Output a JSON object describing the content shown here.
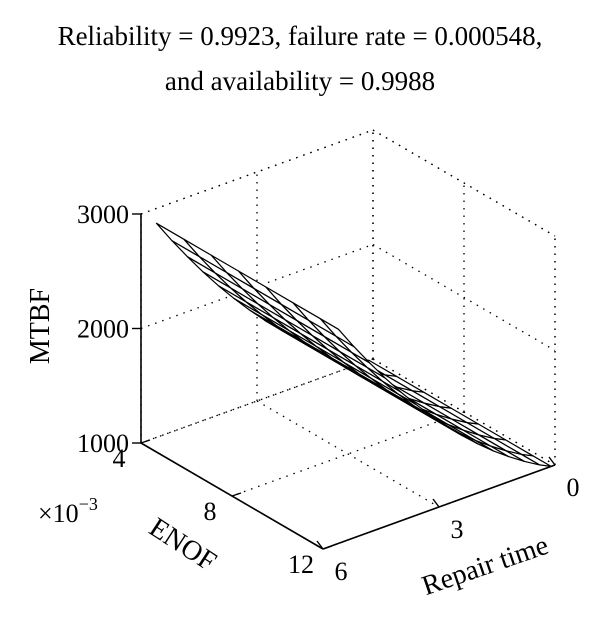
{
  "title_lines": [
    "Reliability = 0.9923, failure rate = 0.000548,",
    "and availability = 0.9988"
  ],
  "chart_data": {
    "type": "surface",
    "title": "Reliability = 0.9923, failure rate = 0.000548, and availability = 0.9988",
    "xlabel": "Repair time",
    "ylabel": "ENOF",
    "zlabel": "MTBF",
    "x_ticks": [
      0,
      3,
      6
    ],
    "y_ticks": [
      4,
      8,
      12
    ],
    "y_exponent_label": "×10",
    "y_exponent_power": "−3",
    "z_ticks": [
      1000,
      2000,
      3000
    ],
    "x_range": [
      0,
      6
    ],
    "y_range_scaled_e-3": [
      4,
      12
    ],
    "z_range": [
      1000,
      3000
    ],
    "grid": true,
    "box": true,
    "surface_color": "#ffffff",
    "edge_color": "#000000",
    "surface": {
      "repair_time": [
        0.1,
        0.4,
        0.8,
        1.2,
        1.6,
        2.0,
        2.4,
        2.8,
        3.2,
        3.6,
        4.0,
        4.4,
        4.8,
        5.2,
        5.6
      ],
      "enof_e-3": [
        4,
        5.2,
        6.4,
        7.6,
        8.8,
        10.0,
        11.2,
        12.0
      ],
      "mtbf_curve": [
        1000,
        1050,
        1130,
        1220,
        1320,
        1430,
        1550,
        1680,
        1820,
        1970,
        2130,
        2300,
        2480,
        2670,
        2870
      ]
    }
  }
}
